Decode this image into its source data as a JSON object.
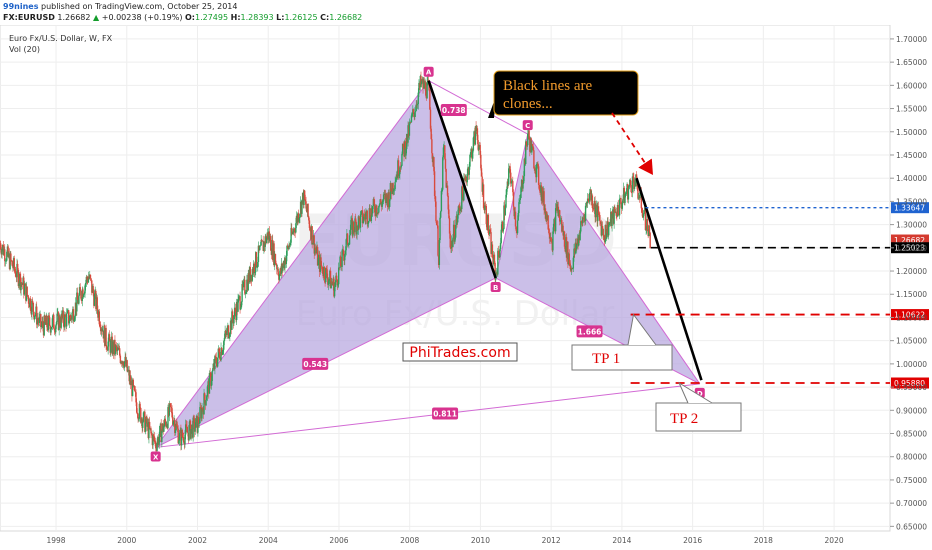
{
  "header": {
    "author": "99nines",
    "published": "published on TradingView.com, October 25, 2014",
    "symbol": "FX:EURUSD",
    "last": "1.26682",
    "up_arrow": "▲",
    "change": "+0.00238 (+0.19%)",
    "ohlc": [
      {
        "label": "O:",
        "value": "1.27495"
      },
      {
        "label": "H:",
        "value": "1.28393"
      },
      {
        "label": "L:",
        "value": "1.26125"
      },
      {
        "label": "C:",
        "value": "1.26682"
      }
    ]
  },
  "chart_title": "Euro Fx/U.S. Dollar, W, FX",
  "vol_label": "Vol (20)",
  "watermark": {
    "symbol": "EURUSD",
    "name": "Euro Fx/U.S. Dollar"
  },
  "colors": {
    "up": "#2e9e5a",
    "down": "#d84a3d",
    "pattern_fill": "#b7a6df",
    "pattern_line": "#d26ad4",
    "accent": "#d8338f",
    "red": "#e00000",
    "blue": "#1f63d0"
  },
  "chart_data": {
    "type": "line",
    "x_axis_type": "date",
    "xlim": [
      "1996-06-01",
      "2021-08-01"
    ],
    "ylim": [
      0.64,
      1.73
    ],
    "xticks": [
      "1998",
      "2000",
      "2002",
      "2004",
      "2006",
      "2008",
      "2010",
      "2012",
      "2014",
      "2016",
      "2018",
      "2020"
    ],
    "yticks": [
      "1.70000",
      "1.65000",
      "1.60000",
      "1.55000",
      "1.50000",
      "1.45000",
      "1.40000",
      "1.35000",
      "1.30000",
      "1.25000",
      "1.20000",
      "1.15000",
      "1.10000",
      "1.05000",
      "1.00000",
      "0.95000",
      "0.90000",
      "0.85000",
      "0.80000",
      "0.75000",
      "0.70000",
      "0.65000"
    ],
    "price_path": [
      {
        "x": "1996-06-01",
        "y": 1.26
      },
      {
        "x": "1997-01-01",
        "y": 1.18
      },
      {
        "x": "1997-08-01",
        "y": 1.08
      },
      {
        "x": "1998-01-01",
        "y": 1.09
      },
      {
        "x": "1998-06-01",
        "y": 1.1
      },
      {
        "x": "1998-12-01",
        "y": 1.19
      },
      {
        "x": "1999-06-01",
        "y": 1.05
      },
      {
        "x": "1999-12-01",
        "y": 1.01
      },
      {
        "x": "2000-05-01",
        "y": 0.9
      },
      {
        "x": "2000-10-26",
        "y": 0.827
      },
      {
        "x": "2001-04-01",
        "y": 0.9
      },
      {
        "x": "2001-07-01",
        "y": 0.84
      },
      {
        "x": "2002-01-01",
        "y": 0.87
      },
      {
        "x": "2002-07-01",
        "y": 1.0
      },
      {
        "x": "2003-06-01",
        "y": 1.18
      },
      {
        "x": "2004-01-01",
        "y": 1.28
      },
      {
        "x": "2004-05-01",
        "y": 1.19
      },
      {
        "x": "2004-12-30",
        "y": 1.36
      },
      {
        "x": "2005-06-01",
        "y": 1.22
      },
      {
        "x": "2005-11-15",
        "y": 1.165
      },
      {
        "x": "2006-05-01",
        "y": 1.29
      },
      {
        "x": "2006-12-01",
        "y": 1.33
      },
      {
        "x": "2007-06-01",
        "y": 1.36
      },
      {
        "x": "2007-12-01",
        "y": 1.48
      },
      {
        "x": "2008-04-22",
        "y": 1.602
      },
      {
        "x": "2008-07-15",
        "y": 1.59
      },
      {
        "x": "2008-10-27",
        "y": 1.23
      },
      {
        "x": "2008-12-18",
        "y": 1.47
      },
      {
        "x": "2009-03-01",
        "y": 1.25
      },
      {
        "x": "2009-11-25",
        "y": 1.51
      },
      {
        "x": "2010-02-01",
        "y": 1.36
      },
      {
        "x": "2010-06-07",
        "y": 1.188
      },
      {
        "x": "2010-11-01",
        "y": 1.42
      },
      {
        "x": "2011-01-10",
        "y": 1.29
      },
      {
        "x": "2011-05-04",
        "y": 1.495
      },
      {
        "x": "2011-08-01",
        "y": 1.42
      },
      {
        "x": "2012-01-13",
        "y": 1.265
      },
      {
        "x": "2012-03-01",
        "y": 1.34
      },
      {
        "x": "2012-07-24",
        "y": 1.206
      },
      {
        "x": "2013-02-01",
        "y": 1.37
      },
      {
        "x": "2013-07-01",
        "y": 1.28
      },
      {
        "x": "2014-05-08",
        "y": 1.399
      },
      {
        "x": "2014-07-01",
        "y": 1.36
      },
      {
        "x": "2014-10-24",
        "y": 1.26682
      }
    ],
    "harmonic_pattern": {
      "points": [
        {
          "label": "X",
          "x": "2000-10-26",
          "y": 0.82
        },
        {
          "label": "A",
          "x": "2008-07-15",
          "y": 1.61
        },
        {
          "label": "B",
          "x": "2010-06-07",
          "y": 1.185
        },
        {
          "label": "C",
          "x": "2011-05-04",
          "y": 1.495
        },
        {
          "label": "D",
          "x": "2016-03-15",
          "y": 0.957
        }
      ],
      "ratios": [
        {
          "label": "0.738",
          "x": "2009-04-01",
          "y": 1.547
        },
        {
          "label": "0.543",
          "x": "2005-05-01",
          "y": 1.0
        },
        {
          "label": "1.666",
          "x": "2013-02-01",
          "y": 1.07
        },
        {
          "label": "0.811",
          "x": "2009-01-01",
          "y": 0.893
        }
      ]
    },
    "clone_lines": [
      {
        "from": {
          "x": "2008-07-15",
          "y": 1.61
        },
        "to": {
          "x": "2010-06-07",
          "y": 1.185
        }
      },
      {
        "from": {
          "x": "2014-06-01",
          "y": 1.4
        },
        "to": {
          "x": "2016-04-01",
          "y": 0.965
        }
      }
    ],
    "price_levels": [
      {
        "label": "1.33647",
        "y": 1.33647,
        "style": "blue-dotted",
        "from": "2014-09-01"
      },
      {
        "label": "1.26682",
        "y": 1.26682,
        "style": "last-price",
        "from": null
      },
      {
        "label": "1.25023",
        "y": 1.25023,
        "style": "black-dashed",
        "from": "2014-06-15"
      },
      {
        "label": "1.10622",
        "y": 1.10622,
        "style": "red-dashed",
        "from": "2014-04-01"
      },
      {
        "label": "0.95880",
        "y": 0.9588,
        "style": "red-dashed",
        "from": "2014-04-01"
      }
    ],
    "annotations": {
      "clones_note": "Black lines are clones...",
      "tp1": "TP 1",
      "tp2": "TP 2",
      "brand": "PhiTrades.com"
    }
  }
}
